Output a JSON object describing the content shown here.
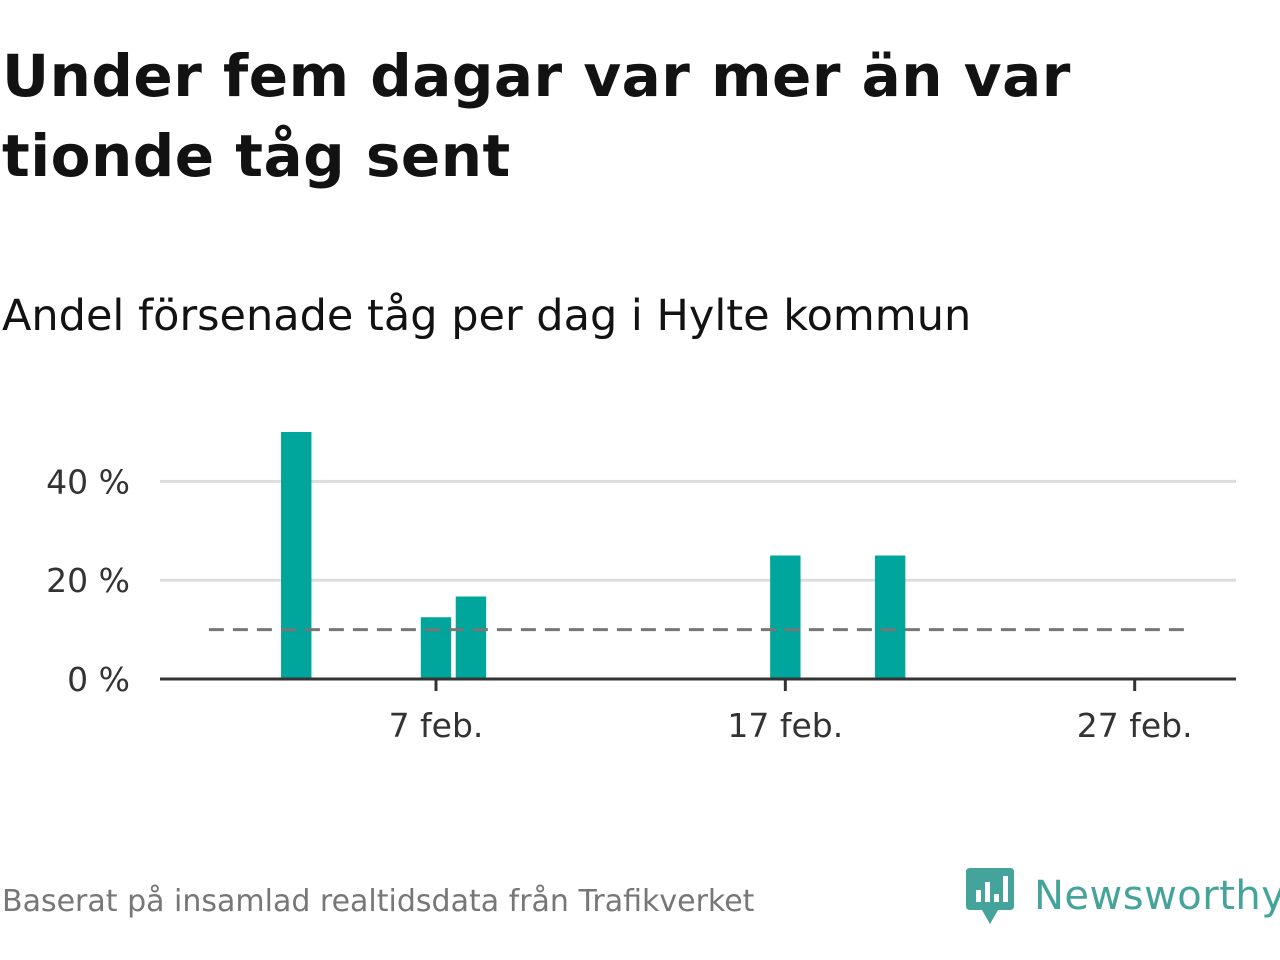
{
  "header": {
    "title": "Under fem dagar var mer än var tionde tåg sent",
    "subtitle": "Andel försenade tåg per dag i Hylte kommun"
  },
  "footer": {
    "source": "Baserat på insamlad realtidsdata från Trafikverket",
    "brand": "Newsworthy"
  },
  "colors": {
    "bar": "#00a59b",
    "reference_line": "#777777",
    "grid": "#dddddd",
    "axis": "#333333",
    "brand": "#44a39b"
  },
  "chart_data": {
    "type": "bar",
    "x_unit": "day of February",
    "x": [
      3,
      7,
      8,
      17,
      20
    ],
    "values": [
      50,
      12.5,
      16.7,
      25,
      25
    ],
    "y_ticks": [
      0,
      20,
      40
    ],
    "y_tick_labels": [
      "0 %",
      "20 %",
      "40 %"
    ],
    "x_ticks": [
      7,
      17,
      27
    ],
    "x_tick_labels": [
      "7 feb.",
      "17 feb.",
      "27 feb."
    ],
    "xlim": [
      -0.9,
      29.9
    ],
    "ylim": [
      0,
      50
    ],
    "reference_line": {
      "value": 10,
      "x_range": [
        0.5,
        28.5
      ],
      "style": "dashed"
    },
    "grid": true,
    "legend": "none"
  }
}
